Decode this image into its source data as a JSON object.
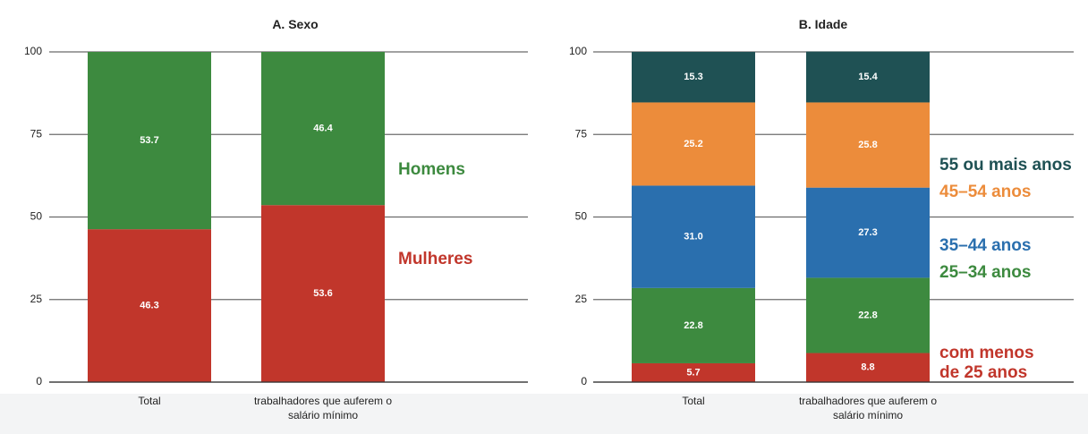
{
  "chart_data": [
    {
      "type": "stacked_bar",
      "title": "A. Sexo",
      "categories": [
        "Total",
        "trabalhadores que auferem o salário mínimo"
      ],
      "series": [
        {
          "name": "Mulheres",
          "color": "#c1362b",
          "values": [
            46.3,
            53.6
          ]
        },
        {
          "name": "Homens",
          "color": "#3d8a3f",
          "values": [
            53.7,
            46.4
          ]
        }
      ],
      "ylim": [
        0,
        100
      ],
      "yticks": [
        0,
        25,
        50,
        75,
        100
      ],
      "grid": true
    },
    {
      "type": "stacked_bar",
      "title": "B. Idade",
      "categories": [
        "Total",
        "trabalhadores que auferem o salário mínimo"
      ],
      "series": [
        {
          "name": "com menos de 25 anos",
          "color": "#c1362b",
          "values": [
            5.7,
            8.8
          ]
        },
        {
          "name": "25–34 anos",
          "color": "#3d8a3f",
          "values": [
            22.8,
            22.8
          ]
        },
        {
          "name": "35–44 anos",
          "color": "#2a6fae",
          "values": [
            31.0,
            27.3
          ],
          "value_labels": [
            "31.0",
            "27.3"
          ]
        },
        {
          "name": "45–54 anos",
          "color": "#ec8c3b",
          "values": [
            25.2,
            25.8
          ]
        },
        {
          "name": "55 ou mais anos",
          "color": "#1f5154",
          "values": [
            15.3,
            15.4
          ]
        }
      ],
      "ylim": [
        0,
        100
      ],
      "yticks": [
        0,
        25,
        50,
        75,
        100
      ],
      "grid": true
    }
  ]
}
